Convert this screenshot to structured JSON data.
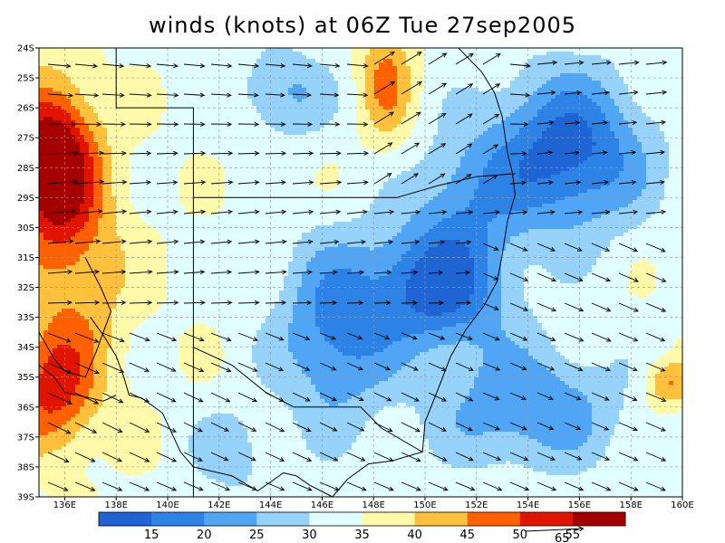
{
  "title": "winds (knots) at 06Z Tue 27sep2005",
  "colors": {
    "levels": [
      "#1e64d2",
      "#2d82e6",
      "#50a5f5",
      "#96d2fa",
      "#e1ffff",
      "#fffaaa",
      "#ffc03c",
      "#ff6000",
      "#e11400",
      "#a50000"
    ],
    "grid": "#999999",
    "coast": "#000000",
    "arrow": "#000000"
  },
  "chart_data": {
    "type": "heatmap",
    "title": "winds (knots) at 06Z Tue 27sep2005",
    "x_range": [
      135,
      160
    ],
    "y_range": [
      -39,
      -24
    ],
    "grid": true,
    "x_ticks": [
      "136E",
      "138E",
      "140E",
      "142E",
      "144E",
      "146E",
      "148E",
      "150E",
      "152E",
      "154E",
      "156E",
      "158E",
      "160E"
    ],
    "y_ticks": [
      "24S",
      "25S",
      "26S",
      "27S",
      "28S",
      "29S",
      "30S",
      "31S",
      "32S",
      "33S",
      "34S",
      "35S",
      "36S",
      "37S",
      "38S",
      "39S"
    ],
    "colorbar": {
      "labels": [
        "15",
        "20",
        "25",
        "30",
        "35",
        "40",
        "45",
        "50",
        "55"
      ],
      "extra_label": "65"
    },
    "speed_field": {
      "base": 34,
      "centers": [
        {
          "lon": 135.5,
          "lat": -27.8,
          "amp": 28,
          "sx": 1.6,
          "sy": 2.5
        },
        {
          "lon": 135.5,
          "lat": -35.5,
          "amp": 16,
          "sx": 1.6,
          "sy": 2.0
        },
        {
          "lon": 136.5,
          "lat": -31.5,
          "amp": 10,
          "sx": 2.0,
          "sy": 4.0
        },
        {
          "lon": 148.5,
          "lat": -25.0,
          "amp": 12,
          "sx": 1.0,
          "sy": 2.0
        },
        {
          "lon": 150.5,
          "lat": -32.0,
          "amp": -22,
          "sx": 2.6,
          "sy": 2.0
        },
        {
          "lon": 146.5,
          "lat": -33.5,
          "amp": -16,
          "sx": 2.2,
          "sy": 3.0
        },
        {
          "lon": 155.5,
          "lat": -27.5,
          "amp": -22,
          "sx": 3.0,
          "sy": 2.6
        },
        {
          "lon": 154.0,
          "lat": -36.0,
          "amp": -14,
          "sx": 3.5,
          "sy": 2.0
        },
        {
          "lon": 151.5,
          "lat": -29.0,
          "amp": -10,
          "sx": 2.0,
          "sy": 2.0
        },
        {
          "lon": 144.5,
          "lat": -25.5,
          "amp": -10,
          "sx": 1.8,
          "sy": 1.5
        },
        {
          "lon": 159.5,
          "lat": -35.2,
          "amp": 12,
          "sx": 1.0,
          "sy": 0.8
        },
        {
          "lon": 142.5,
          "lat": -37.5,
          "amp": -7,
          "sx": 1.5,
          "sy": 1.5
        }
      ]
    },
    "coastline": [
      [
        151.3,
        -24.0
      ],
      [
        152.2,
        -24.8
      ],
      [
        152.7,
        -25.5
      ],
      [
        153.0,
        -26.3
      ],
      [
        153.2,
        -27.5
      ],
      [
        153.4,
        -28.2
      ],
      [
        153.5,
        -28.9
      ],
      [
        153.2,
        -29.8
      ],
      [
        153.0,
        -30.9
      ],
      [
        152.8,
        -31.8
      ],
      [
        152.3,
        -32.6
      ],
      [
        151.6,
        -33.4
      ],
      [
        151.0,
        -34.3
      ],
      [
        150.6,
        -35.2
      ],
      [
        150.0,
        -36.5
      ],
      [
        149.9,
        -37.5
      ],
      [
        148.7,
        -37.8
      ],
      [
        147.8,
        -37.9
      ],
      [
        147.0,
        -38.4
      ],
      [
        146.4,
        -39.0
      ]
    ],
    "borders": [
      [
        [
          141.0,
          -34.0
        ],
        [
          141.0,
          -39.0
        ]
      ],
      [
        [
          141.0,
          -34.0
        ],
        [
          142.5,
          -34.6
        ],
        [
          143.8,
          -35.5
        ],
        [
          144.9,
          -36.0
        ],
        [
          146.5,
          -36.0
        ],
        [
          147.5,
          -36.0
        ],
        [
          148.3,
          -36.7
        ],
        [
          149.3,
          -37.2
        ],
        [
          149.9,
          -37.5
        ]
      ],
      [
        [
          138.0,
          -24.0
        ],
        [
          138.0,
          -26.0
        ],
        [
          141.0,
          -26.0
        ],
        [
          141.0,
          -29.0
        ],
        [
          148.9,
          -29.0
        ],
        [
          150.5,
          -28.6
        ],
        [
          152.0,
          -28.3
        ],
        [
          153.5,
          -28.2
        ]
      ],
      [
        [
          141.0,
          -29.0
        ],
        [
          141.0,
          -34.0
        ]
      ]
    ],
    "coast_sa": [
      [
        [
          137.0,
          -33.0
        ],
        [
          137.5,
          -33.6
        ],
        [
          138.0,
          -34.3
        ],
        [
          138.3,
          -35.0
        ],
        [
          138.5,
          -35.6
        ],
        [
          139.0,
          -35.7
        ],
        [
          139.8,
          -36.2
        ],
        [
          140.5,
          -37.5
        ],
        [
          141.0,
          -38.0
        ],
        [
          142.5,
          -38.3
        ],
        [
          143.5,
          -38.8
        ],
        [
          144.5,
          -38.2
        ],
        [
          145.0,
          -38.3
        ],
        [
          145.5,
          -38.6
        ],
        [
          146.4,
          -39.0
        ]
      ],
      [
        [
          135.0,
          -34.6
        ],
        [
          135.6,
          -35.0
        ],
        [
          136.0,
          -35.5
        ],
        [
          137.5,
          -35.8
        ],
        [
          138.0,
          -35.6
        ]
      ],
      [
        [
          136.8,
          -31.0
        ],
        [
          137.4,
          -32.0
        ],
        [
          137.8,
          -32.8
        ],
        [
          137.5,
          -33.5
        ],
        [
          137.2,
          -34.2
        ],
        [
          136.8,
          -35.0
        ],
        [
          136.0,
          -34.8
        ],
        [
          135.6,
          -34.4
        ],
        [
          135.2,
          -33.8
        ],
        [
          135.0,
          -33.5
        ]
      ]
    ]
  }
}
